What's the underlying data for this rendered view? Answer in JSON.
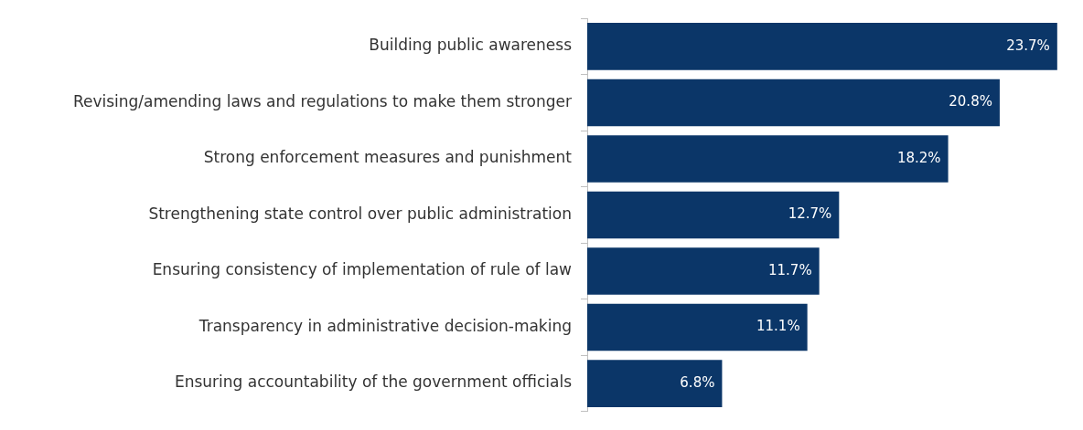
{
  "chart_data": {
    "type": "bar",
    "orientation": "horizontal",
    "categories": [
      "Building public awareness",
      "Revising/amending laws and regulations to make them stronger",
      "Strong enforcement measures and punishment",
      "Strengthening state control over public administration",
      "Ensuring consistency of implementation of rule of law",
      "Transparency in administrative decision-making",
      "Ensuring accountability of the government officials"
    ],
    "values": [
      23.7,
      20.8,
      18.2,
      12.7,
      11.7,
      11.1,
      6.8
    ],
    "value_labels": [
      "23.7%",
      "20.8%",
      "18.2%",
      "12.7%",
      "11.7%",
      "11.1%",
      "6.8%"
    ],
    "color": "#0b3668",
    "tick_labels": "y",
    "legend": false
  }
}
